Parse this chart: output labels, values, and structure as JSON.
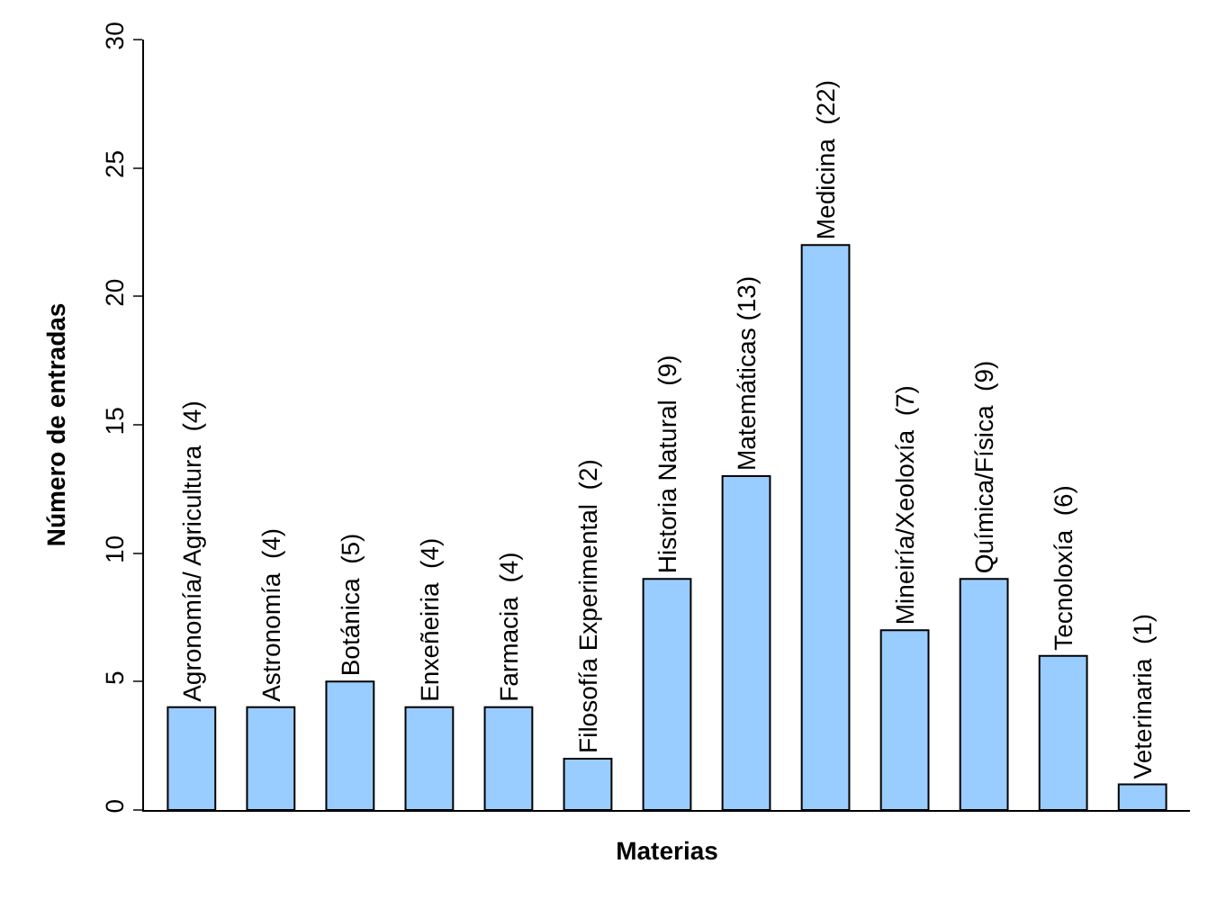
{
  "chart_data": {
    "type": "bar",
    "xlabel": "Materias",
    "ylabel": "Número de entradas",
    "categories": [
      null,
      null,
      null,
      null,
      null,
      null,
      null,
      null,
      null,
      null,
      null,
      null,
      null
    ],
    "values": [
      4,
      4,
      5,
      4,
      4,
      2,
      9,
      13,
      22,
      7,
      9,
      6,
      1
    ],
    "value_labels": [
      "Agronomía/ Agricultura  (4)",
      "Astronomía  (4)",
      "Botánica  (5)",
      "Enxeñeiria  (4)",
      "Farmacia  (4)",
      "Filosofía Experimental  (2)",
      "Historia Natural  (9)",
      "Matemáticas (13)",
      "Medicina  (22)",
      "Mineiría/Xeoloxía  (7)",
      "Química/Física  (9)",
      "Tecnoloxía  (6)",
      "Veterinaria  (1)"
    ],
    "color": "#99ccff",
    "ylim": [
      0,
      30
    ],
    "yticks": [
      0,
      5,
      10,
      15,
      20,
      25,
      30
    ]
  }
}
